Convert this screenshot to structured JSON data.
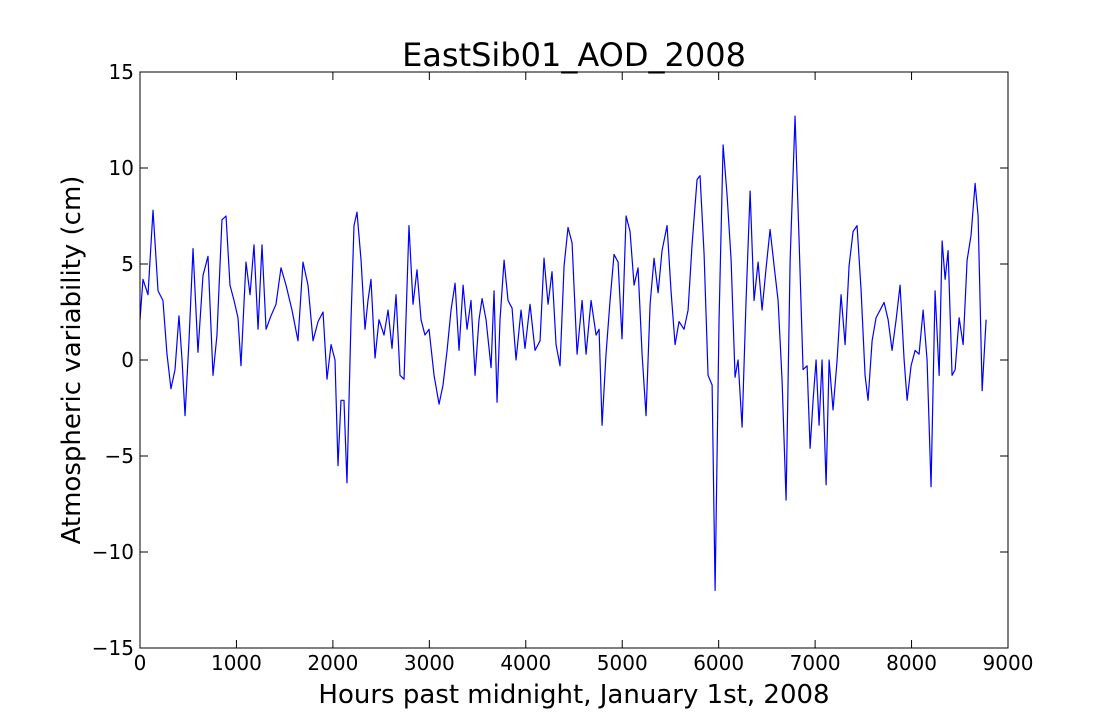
{
  "chart_data": {
    "type": "line",
    "title": "EastSib01_AOD_2008",
    "x_label": "Hours past midnight, January 1st, 2008",
    "y_label": "Atmospheric variability (cm)",
    "color": "#0000ff",
    "xlim": [
      0,
      9000
    ],
    "xticks": [
      0,
      1000,
      2000,
      3000,
      4000,
      5000,
      6000,
      7000,
      8000,
      9000
    ],
    "ylim": [
      -15,
      15
    ],
    "yticks": [
      {
        "value": -15,
        "label": "−15"
      },
      {
        "value": -10,
        "label": "−10"
      },
      {
        "value": -5,
        "label": "−5"
      },
      0,
      5,
      10,
      15
    ],
    "x": [
      0,
      31,
      83,
      135,
      187,
      238,
      280,
      321,
      363,
      404,
      436,
      467,
      508,
      550,
      601,
      653,
      705,
      757,
      798,
      850,
      892,
      933,
      975,
      1016,
      1047,
      1099,
      1141,
      1182,
      1224,
      1265,
      1307,
      1358,
      1410,
      1462,
      1514,
      1576,
      1638,
      1690,
      1742,
      1794,
      1846,
      1898,
      1939,
      1981,
      2022,
      2053,
      2084,
      2115,
      2146,
      2188,
      2219,
      2250,
      2292,
      2333,
      2364,
      2395,
      2437,
      2478,
      2530,
      2572,
      2613,
      2655,
      2696,
      2738,
      2789,
      2831,
      2872,
      2914,
      2955,
      2997,
      3049,
      3101,
      3142,
      3184,
      3225,
      3267,
      3308,
      3350,
      3391,
      3432,
      3474,
      3515,
      3547,
      3588,
      3640,
      3671,
      3702,
      3733,
      3775,
      3816,
      3858,
      3899,
      3951,
      3992,
      4044,
      4096,
      4148,
      4189,
      4231,
      4272,
      4314,
      4355,
      4397,
      4438,
      4480,
      4532,
      4584,
      4625,
      4677,
      4729,
      4760,
      4791,
      4832,
      4874,
      4915,
      4957,
      4998,
      5040,
      5081,
      5123,
      5164,
      5206,
      5247,
      5289,
      5330,
      5372,
      5413,
      5465,
      5506,
      5548,
      5589,
      5641,
      5683,
      5724,
      5776,
      5807,
      5849,
      5890,
      5932,
      5963,
      6004,
      6046,
      6087,
      6129,
      6170,
      6201,
      6243,
      6284,
      6326,
      6367,
      6409,
      6450,
      6492,
      6533,
      6575,
      6616,
      6657,
      6699,
      6741,
      6792,
      6834,
      6875,
      6917,
      6948,
      6979,
      7010,
      7041,
      7072,
      7114,
      7145,
      7186,
      7228,
      7269,
      7311,
      7352,
      7394,
      7435,
      7477,
      7518,
      7549,
      7591,
      7632,
      7674,
      7715,
      7757,
      7798,
      7840,
      7881,
      7923,
      7954,
      7995,
      8037,
      8078,
      8120,
      8161,
      8202,
      8244,
      8286,
      8317,
      8348,
      8379,
      8420,
      8452,
      8493,
      8535,
      8576,
      8617,
      8659,
      8690,
      8732,
      8773
    ],
    "values": [
      2.1,
      4.2,
      3.4,
      7.8,
      3.6,
      3.1,
      0.3,
      -1.5,
      -0.5,
      2.3,
      0,
      -2.9,
      1.0,
      5.8,
      0.4,
      4.4,
      5.4,
      -0.8,
      1.3,
      7.3,
      7.5,
      3.9,
      3.1,
      2.2,
      -0.3,
      5.1,
      3.4,
      6.0,
      1.6,
      6.0,
      1.6,
      2.3,
      2.9,
      4.8,
      3.9,
      2.6,
      1.0,
      5.1,
      3.9,
      1.0,
      2.0,
      2.5,
      -1.0,
      0.8,
      0,
      -5.5,
      -2.1,
      -2.1,
      -6.4,
      2.1,
      7.0,
      7.7,
      5.2,
      1.6,
      3.1,
      4.2,
      0.1,
      2.1,
      1.3,
      2.6,
      0.6,
      3.4,
      -0.8,
      -1.0,
      7.0,
      2.9,
      4.7,
      2.1,
      1.3,
      1.6,
      -0.8,
      -2.3,
      -1.3,
      0.5,
      2.6,
      4.0,
      0.5,
      3.9,
      1.6,
      3.1,
      -0.8,
      2.1,
      3.2,
      2.1,
      -0.4,
      3.6,
      -2.2,
      2.1,
      5.2,
      3.1,
      2.7,
      0,
      2.6,
      0.6,
      2.9,
      0.5,
      1.0,
      5.3,
      2.9,
      4.6,
      0.8,
      -0.3,
      4.9,
      6.9,
      6.1,
      0.3,
      3.1,
      0.3,
      3.1,
      1.3,
      1.6,
      -3.4,
      0.3,
      3.1,
      5.5,
      5.1,
      1.1,
      7.5,
      6.7,
      3.9,
      4.8,
      0.3,
      -2.9,
      2.9,
      5.3,
      3.5,
      5.7,
      7.0,
      3.6,
      0.8,
      2.0,
      1.6,
      2.6,
      6.0,
      9.4,
      9.6,
      5.5,
      -0.8,
      -1.3,
      -12.0,
      2.1,
      11.2,
      8.6,
      5.2,
      -0.9,
      0,
      -3.5,
      3.1,
      8.8,
      3.1,
      5.1,
      2.6,
      4.8,
      6.8,
      4.9,
      3.1,
      -1.0,
      -7.3,
      5.2,
      12.7,
      6.2,
      -0.5,
      -0.3,
      -4.6,
      -2.1,
      0,
      -3.4,
      0,
      -6.5,
      0,
      -2.6,
      0,
      3.4,
      0.8,
      4.9,
      6.7,
      7.0,
      3.6,
      -0.8,
      -2.1,
      1.0,
      2.2,
      2.6,
      3.0,
      2.1,
      0.5,
      2.1,
      3.9,
      0,
      -2.1,
      -0.3,
      0.5,
      0.3,
      2.6,
      0,
      -6.6,
      3.6,
      -0.8,
      6.2,
      4.2,
      5.7,
      -0.8,
      -0.5,
      2.2,
      0.8,
      5.2,
      6.5,
      9.2,
      7.5,
      -1.6,
      2.1
    ]
  }
}
